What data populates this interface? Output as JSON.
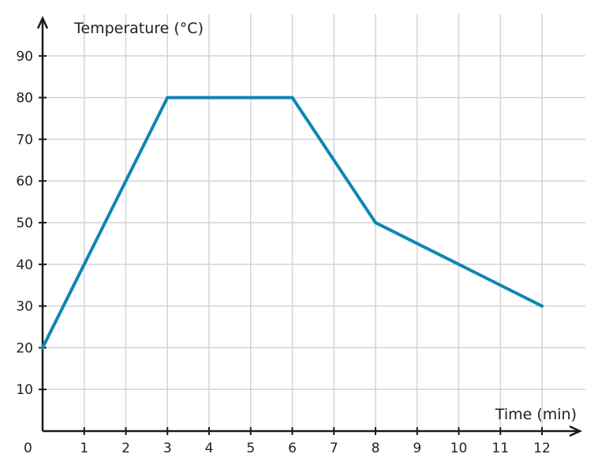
{
  "chart_data": {
    "type": "line",
    "xlabel": "Time (min)",
    "ylabel": "Temperature (°C)",
    "origin_label": "0",
    "xlim": [
      0,
      12.8
    ],
    "ylim": [
      0,
      100
    ],
    "x_ticks": [
      1,
      2,
      3,
      4,
      5,
      6,
      7,
      8,
      9,
      10,
      11,
      12
    ],
    "x_tick_labels": [
      "1",
      "2",
      "3",
      "4",
      "5",
      "6",
      "7",
      "8",
      "9",
      "10",
      "11",
      "12"
    ],
    "y_ticks": [
      10,
      20,
      30,
      40,
      50,
      60,
      70,
      80,
      90
    ],
    "y_tick_labels": [
      "10",
      "20",
      "30",
      "40",
      "50",
      "60",
      "70",
      "80",
      "90"
    ],
    "grid": true,
    "series": [
      {
        "color": "#0e86b4",
        "points": [
          [
            0,
            20
          ],
          [
            3,
            80
          ],
          [
            6,
            80
          ],
          [
            8,
            50
          ],
          [
            12,
            30
          ]
        ]
      }
    ],
    "colors": {
      "grid": "#d4d4d4",
      "axis": "#1a1a1a"
    }
  }
}
